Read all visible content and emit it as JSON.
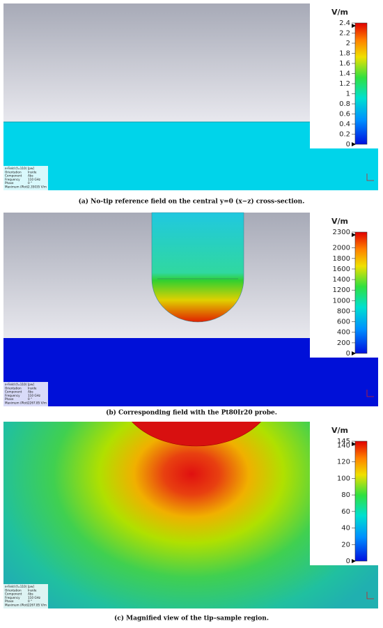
{
  "panels": [
    {
      "unit": "V/m",
      "colorbar_ticks": [
        0,
        0.2,
        0.4,
        0.6,
        0.8,
        1,
        1.2,
        1.4,
        1.6,
        1.8,
        2,
        2.2,
        2.4
      ],
      "info": [
        [
          "e-Field (f=110) [pw]",
          ""
        ],
        [
          "Orientation",
          "Inside"
        ],
        [
          "Component",
          "Abs"
        ],
        [
          "Frequency",
          "110 GHz"
        ],
        [
          "Phase",
          "0 °"
        ],
        [
          "Maximum (Plot)",
          "2.35035 V/m"
        ]
      ],
      "caption": "(a) No-tip reference field on the central y=0 (x−z) cross-section."
    },
    {
      "unit": "V/m",
      "colorbar_ticks": [
        0,
        200,
        400,
        600,
        800,
        1000,
        1200,
        1400,
        1600,
        1800,
        2000,
        2300
      ],
      "info": [
        [
          "e-Field (f=110) [pw]",
          ""
        ],
        [
          "Orientation",
          "Inside"
        ],
        [
          "Component",
          "Abs"
        ],
        [
          "Frequency",
          "110 GHz"
        ],
        [
          "Phase",
          "0 °"
        ],
        [
          "Maximum (Plot)",
          "2267.85 V/m"
        ]
      ],
      "caption": "(b) Corresponding field with the Pt80Ir20 probe."
    },
    {
      "unit": "V/m",
      "colorbar_ticks": [
        0,
        20,
        40,
        60,
        80,
        100,
        120,
        140,
        145
      ],
      "info": [
        [
          "e-Field (f=110) [pw]",
          ""
        ],
        [
          "Orientation",
          "Inside"
        ],
        [
          "Component",
          "Abs"
        ],
        [
          "Frequency",
          "110 GHz"
        ],
        [
          "Phase",
          "0 °"
        ],
        [
          "Maximum (Plot)",
          "2267.85 V/m"
        ]
      ],
      "caption": "(c) Magnified view of the tip–sample region."
    }
  ]
}
